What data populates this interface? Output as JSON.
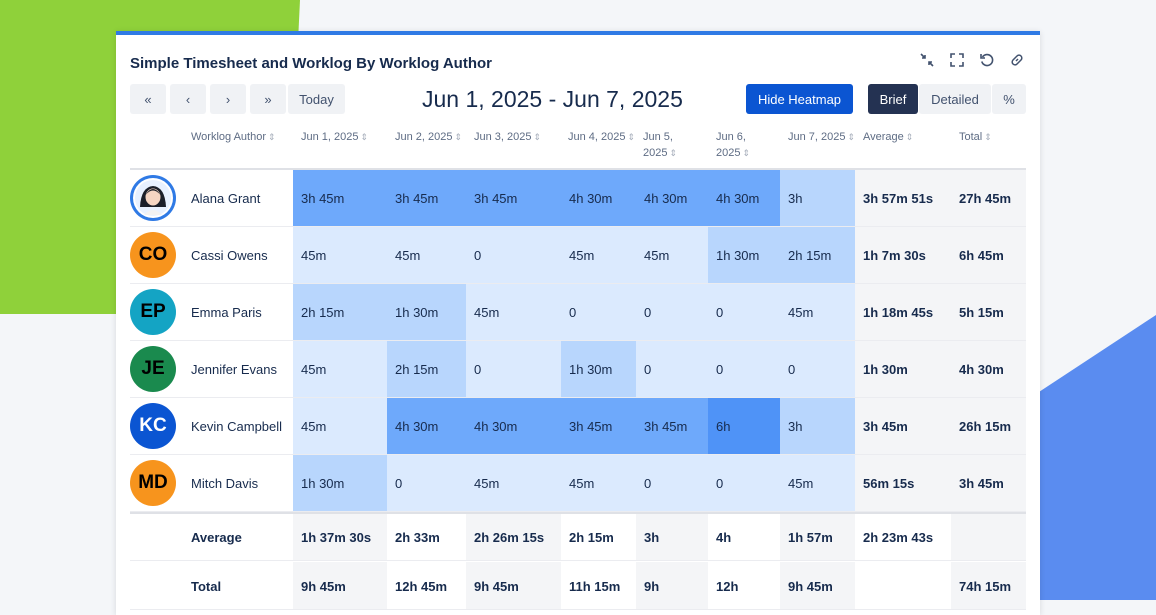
{
  "title": "Simple Timesheet and Worklog By Worklog Author",
  "header_icons": [
    "collapse-icon",
    "fullscreen-icon",
    "refresh-icon",
    "link-icon"
  ],
  "nav": {
    "first": "«",
    "prev": "‹",
    "next": "›",
    "last": "»",
    "today": "Today"
  },
  "date_range": "Jun 1, 2025 - Jun 7, 2025",
  "heatmap_button": "Hide Heatmap",
  "view_modes": {
    "brief": "Brief",
    "detailed": "Detailed",
    "percent": "%"
  },
  "columns": [
    "Worklog Author",
    "Jun 1, 2025",
    "Jun 2, 2025",
    "Jun 3, 2025",
    "Jun 4, 2025",
    "Jun 5, 2025",
    "Jun 6, 2025",
    "Jun 7, 2025",
    "Average",
    "Total"
  ],
  "colors": {
    "accent": "#2f7ae5",
    "primary_button": "#0b55d2",
    "selected_toggle": "#243252"
  },
  "rows": [
    {
      "name": "Alana Grant",
      "initials": "",
      "avatar_color": "#2f7ae5",
      "cells": [
        "3h 45m",
        "3h 45m",
        "3h 45m",
        "4h 30m",
        "4h 30m",
        "4h 30m",
        "3h"
      ],
      "average": "3h 57m 51s",
      "total": "27h 45m"
    },
    {
      "name": "Cassi Owens",
      "initials": "CO",
      "avatar_color": "#f7941d",
      "cells": [
        "45m",
        "45m",
        "0",
        "45m",
        "45m",
        "1h 30m",
        "2h 15m"
      ],
      "average": "1h 7m 30s",
      "total": "6h 45m"
    },
    {
      "name": "Emma Paris",
      "initials": "EP",
      "avatar_color": "#14a4c4",
      "cells": [
        "2h 15m",
        "1h 30m",
        "45m",
        "0",
        "0",
        "0",
        "45m"
      ],
      "average": "1h 18m 45s",
      "total": "5h 15m"
    },
    {
      "name": "Jennifer Evans",
      "initials": "JE",
      "avatar_color": "#1a8a4e",
      "cells": [
        "45m",
        "2h 15m",
        "0",
        "1h 30m",
        "0",
        "0",
        "0"
      ],
      "average": "1h 30m",
      "total": "4h 30m"
    },
    {
      "name": "Kevin Campbell",
      "initials": "KC",
      "avatar_color": "#0b55d2",
      "cells": [
        "45m",
        "4h 30m",
        "4h 30m",
        "3h 45m",
        "3h 45m",
        "6h",
        "3h"
      ],
      "average": "3h 45m",
      "total": "26h 15m"
    },
    {
      "name": "Mitch Davis",
      "initials": "MD",
      "avatar_color": "#f7941d",
      "cells": [
        "1h 30m",
        "0",
        "45m",
        "45m",
        "0",
        "0",
        "45m"
      ],
      "average": "56m 15s",
      "total": "3h 45m"
    }
  ],
  "heat_levels": [
    [
      2,
      2,
      2,
      2,
      2,
      2,
      1
    ],
    [
      0,
      0,
      0,
      0,
      0,
      1,
      1
    ],
    [
      1,
      1,
      0,
      0,
      0,
      0,
      0
    ],
    [
      0,
      1,
      0,
      1,
      0,
      0,
      0
    ],
    [
      0,
      2,
      2,
      2,
      2,
      3,
      1
    ],
    [
      1,
      0,
      0,
      0,
      0,
      0,
      0
    ]
  ],
  "average_row": {
    "label": "Average",
    "cells": [
      "1h 37m 30s",
      "2h 33m",
      "2h 26m 15s",
      "2h 15m",
      "3h",
      "4h",
      "1h 57m"
    ],
    "average": "2h 23m 43s",
    "total": ""
  },
  "total_row": {
    "label": "Total",
    "cells": [
      "9h 45m",
      "12h 45m",
      "9h 45m",
      "11h 15m",
      "9h",
      "12h",
      "9h 45m"
    ],
    "average": "",
    "total": "74h 15m"
  }
}
